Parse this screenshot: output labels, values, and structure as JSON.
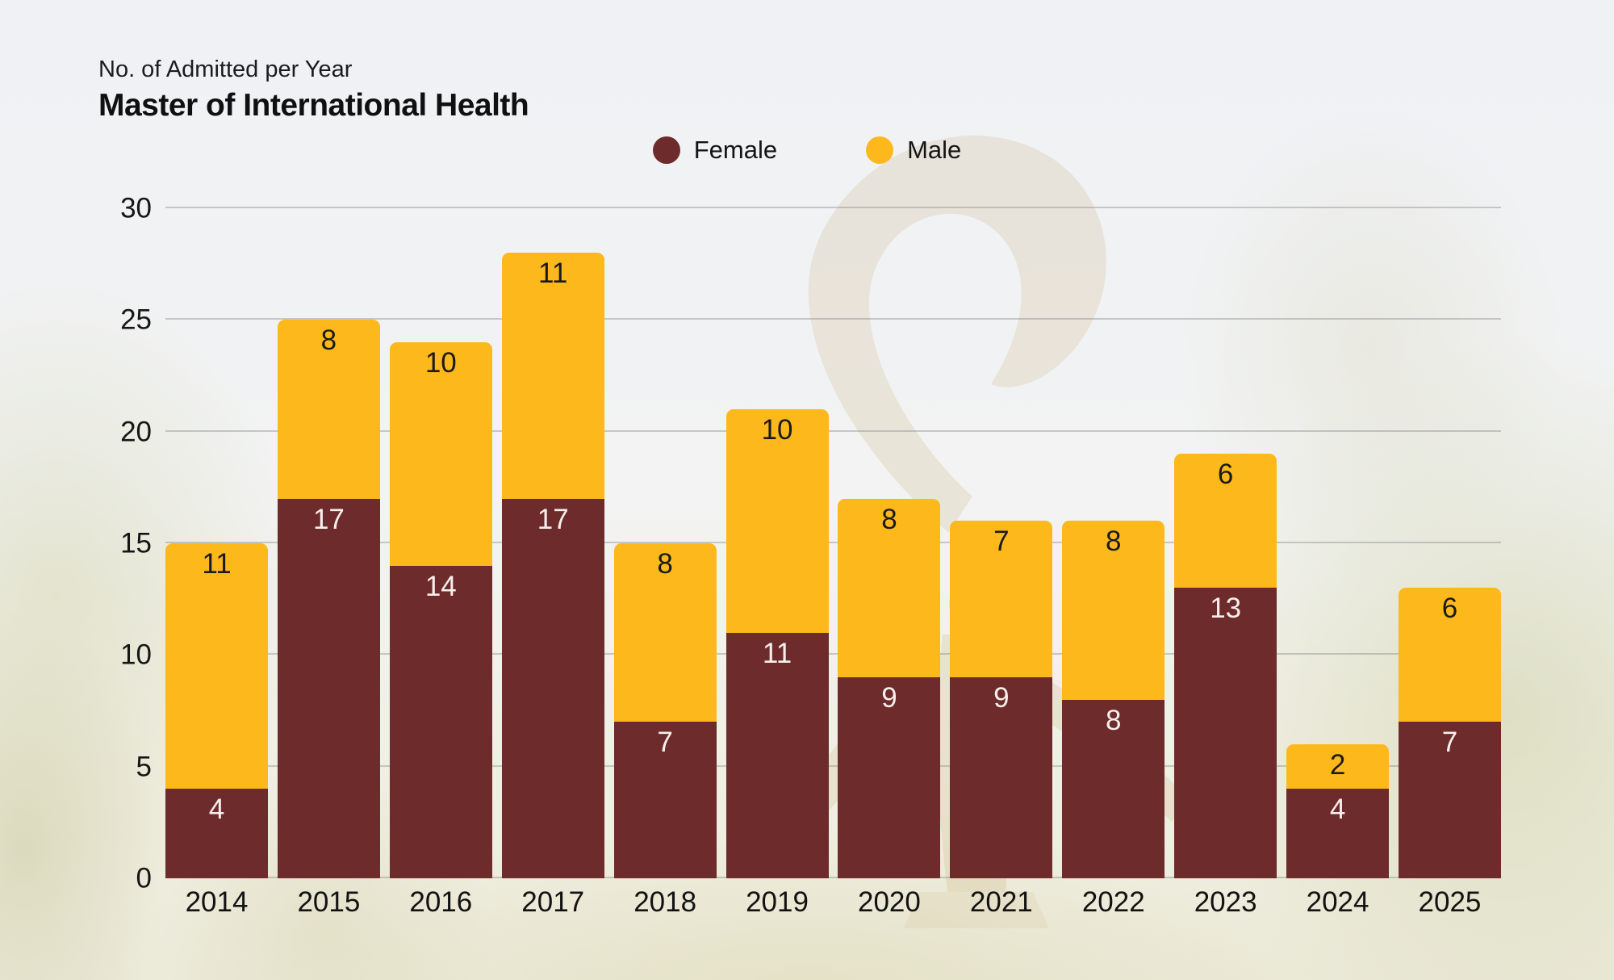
{
  "header": {
    "subtitle": "No. of Admitted per Year",
    "title": "Master of International Health"
  },
  "legend": {
    "items": [
      {
        "label": "Female",
        "color": "#6E2B2B"
      },
      {
        "label": "Male",
        "color": "#FDB81C"
      }
    ]
  },
  "chart_data": {
    "type": "bar",
    "stacked": true,
    "title": "Master of International Health",
    "subtitle": "No. of Admitted per Year",
    "xlabel": "",
    "ylabel": "",
    "categories": [
      "2014",
      "2015",
      "2016",
      "2017",
      "2018",
      "2019",
      "2020",
      "2021",
      "2022",
      "2023",
      "2024",
      "2025"
    ],
    "series": [
      {
        "name": "Female",
        "color": "#6E2B2B",
        "label_color": "#F6EFEC",
        "values": [
          4,
          17,
          14,
          17,
          7,
          11,
          9,
          9,
          8,
          13,
          4,
          7
        ]
      },
      {
        "name": "Male",
        "color": "#FDB81C",
        "label_color": "#1A1A1A",
        "values": [
          11,
          8,
          10,
          11,
          8,
          10,
          8,
          7,
          8,
          6,
          2,
          6
        ]
      }
    ],
    "totals": [
      15,
      25,
      24,
      28,
      15,
      21,
      17,
      16,
      16,
      19,
      6,
      13
    ],
    "ylim": [
      0,
      30
    ],
    "yticks": [
      0,
      5,
      10,
      15,
      20,
      25,
      30
    ],
    "grid": true,
    "gridline_color": "#B4B6B8",
    "legend_position": "top-center"
  },
  "background": {
    "description": "faint washed-out campus photo: sky, trees, grass, gold statue",
    "statue_color": "#B5903F"
  }
}
